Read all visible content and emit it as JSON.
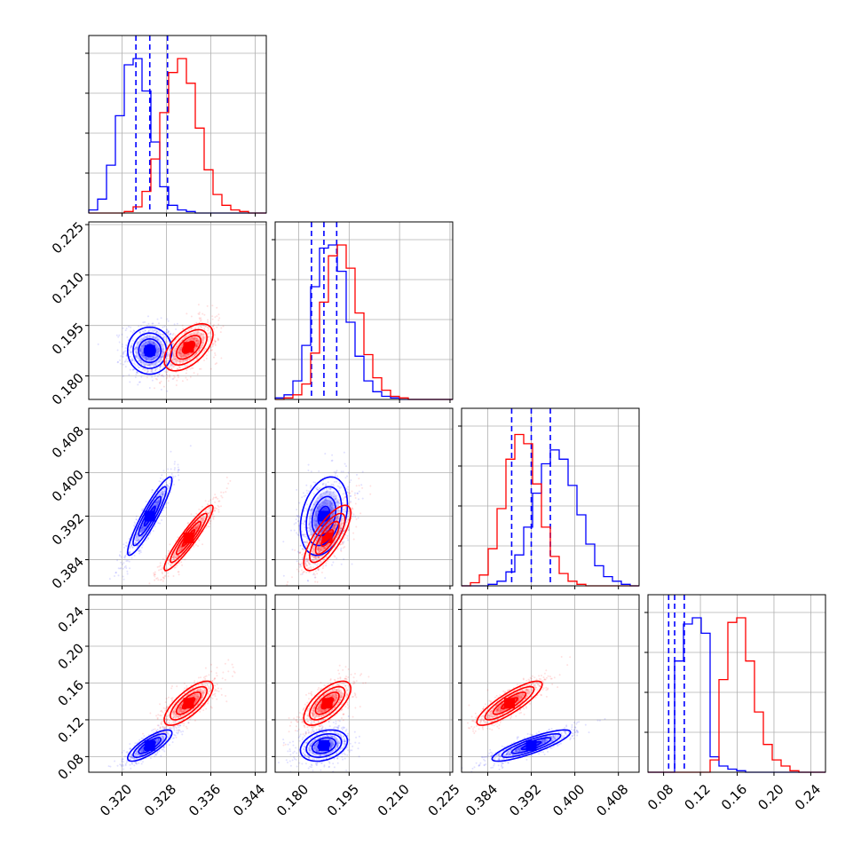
{
  "chart_data": {
    "type": "corner",
    "colors": {
      "blue": "#0000ff",
      "red": "#ff0000",
      "grid": "#b0b0b0",
      "axes": "#000000"
    },
    "grid": true,
    "parameters": [
      {
        "range": [
          0.314,
          0.346
        ],
        "ticks": [
          "0.320",
          "0.328",
          "0.336",
          "0.344"
        ],
        "tick_values": [
          0.32,
          0.328,
          0.336,
          0.344
        ]
      },
      {
        "range": [
          0.173,
          0.2258
        ],
        "ticks": [
          "0.180",
          "0.195",
          "0.210",
          "0.225"
        ],
        "tick_values": [
          0.18,
          0.195,
          0.21,
          0.225
        ]
      },
      {
        "range": [
          0.3792,
          0.4118
        ],
        "ticks": [
          "0.384",
          "0.392",
          "0.400",
          "0.408"
        ],
        "tick_values": [
          0.384,
          0.392,
          0.4,
          0.408
        ]
      },
      {
        "range": [
          0.063,
          0.256
        ],
        "ticks": [
          "0.08",
          "0.12",
          "0.16",
          "0.20",
          "0.24"
        ],
        "tick_values": [
          0.08,
          0.12,
          0.16,
          0.2,
          0.24
        ]
      }
    ],
    "series": [
      {
        "color": "blue",
        "means": [
          0.325,
          0.1875,
          0.392,
          0.092
        ],
        "sds": [
          0.002,
          0.0035,
          0.0036,
          0.0085
        ],
        "correlations": [
          [
            1,
            0.0,
            0.92,
            0.8
          ]
        ],
        "quantiles": [
          [
            0.3225,
            0.325,
            0.3282
          ],
          [
            0.1838,
            0.1875,
            0.1913
          ],
          [
            0.3884,
            0.392,
            0.3955
          ],
          [
            0.0855,
            0.092,
            0.1025
          ]
        ],
        "histograms": [
          [
            0.02,
            0.09,
            0.31,
            0.63,
            0.96,
            1.0,
            0.79,
            0.46,
            0.17,
            0.05,
            0.02,
            0.01,
            0.0,
            0.0,
            0.0,
            0.0,
            0.0,
            0.0,
            0.0,
            0.0
          ],
          [
            0.01,
            0.03,
            0.12,
            0.35,
            0.73,
            0.98,
            1.0,
            0.83,
            0.5,
            0.28,
            0.12,
            0.05,
            0.02,
            0.01,
            0.0,
            0.0,
            0.0,
            0.0,
            0.0,
            0.0
          ],
          [
            0.0,
            0.0,
            0.0,
            0.01,
            0.03,
            0.09,
            0.2,
            0.38,
            0.6,
            0.79,
            0.88,
            0.82,
            0.65,
            0.46,
            0.27,
            0.13,
            0.06,
            0.03,
            0.01,
            0.0
          ],
          [
            0.0,
            0.0,
            0.0,
            0.72,
            0.96,
            1.0,
            0.9,
            0.1,
            0.04,
            0.02,
            0.01,
            0.0,
            0.0,
            0.0,
            0.0,
            0.0,
            0.0,
            0.0,
            0.0,
            0.0
          ]
        ]
      },
      {
        "color": "red",
        "means": [
          0.332,
          0.1885,
          0.388,
          0.138
        ],
        "sds": [
          0.0022,
          0.0035,
          0.003,
          0.012
        ],
        "correlations": [
          [
            1,
            0.55,
            0.93,
            0.75
          ]
        ],
        "quantiles": [],
        "histograms": [
          [
            0.0,
            0.0,
            0.0,
            0.0,
            0.01,
            0.04,
            0.14,
            0.35,
            0.65,
            0.91,
            1.0,
            0.84,
            0.55,
            0.28,
            0.12,
            0.05,
            0.02,
            0.01,
            0.0,
            0.0
          ],
          [
            0.0,
            0.01,
            0.03,
            0.1,
            0.3,
            0.63,
            0.93,
            1.0,
            0.85,
            0.56,
            0.29,
            0.14,
            0.06,
            0.02,
            0.01,
            0.0,
            0.0,
            0.0,
            0.0,
            0.0
          ],
          [
            0.0,
            0.02,
            0.07,
            0.24,
            0.5,
            0.82,
            0.98,
            0.92,
            0.66,
            0.38,
            0.19,
            0.08,
            0.03,
            0.01,
            0.0,
            0.0,
            0.0,
            0.0,
            0.0,
            0.0
          ],
          [
            0.0,
            0.0,
            0.0,
            0.0,
            0.0,
            0.0,
            0.0,
            0.08,
            0.6,
            0.97,
            1.0,
            0.72,
            0.39,
            0.18,
            0.08,
            0.04,
            0.01,
            0.0,
            0.0,
            0.0
          ]
        ]
      }
    ]
  }
}
